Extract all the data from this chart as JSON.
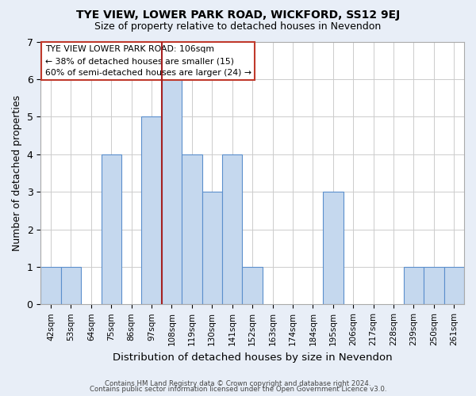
{
  "title": "TYE VIEW, LOWER PARK ROAD, WICKFORD, SS12 9EJ",
  "subtitle": "Size of property relative to detached houses in Nevendon",
  "xlabel": "Distribution of detached houses by size in Nevendon",
  "ylabel": "Number of detached properties",
  "bins": [
    "42sqm",
    "53sqm",
    "64sqm",
    "75sqm",
    "86sqm",
    "97sqm",
    "108sqm",
    "119sqm",
    "130sqm",
    "141sqm",
    "152sqm",
    "163sqm",
    "174sqm",
    "184sqm",
    "195sqm",
    "206sqm",
    "217sqm",
    "228sqm",
    "239sqm",
    "250sqm",
    "261sqm"
  ],
  "values": [
    1,
    1,
    0,
    4,
    0,
    5,
    6,
    4,
    3,
    4,
    1,
    0,
    0,
    0,
    3,
    0,
    0,
    0,
    1,
    1,
    1
  ],
  "highlight_bin_idx": 6,
  "highlight_color": "#a52020",
  "bar_color": "#c5d8ee",
  "bar_edge_color": "#5b8fcc",
  "grid_color": "#cccccc",
  "annotation_text": "TYE VIEW LOWER PARK ROAD: 106sqm\n← 38% of detached houses are smaller (15)\n60% of semi-detached houses are larger (24) →",
  "footer1": "Contains HM Land Registry data © Crown copyright and database right 2024.",
  "footer2": "Contains public sector information licensed under the Open Government Licence v3.0.",
  "ylim": [
    0,
    7
  ],
  "yticks": [
    0,
    1,
    2,
    3,
    4,
    5,
    6,
    7
  ],
  "plot_bg_color": "#ffffff",
  "fig_bg_color": "#e8eef7"
}
